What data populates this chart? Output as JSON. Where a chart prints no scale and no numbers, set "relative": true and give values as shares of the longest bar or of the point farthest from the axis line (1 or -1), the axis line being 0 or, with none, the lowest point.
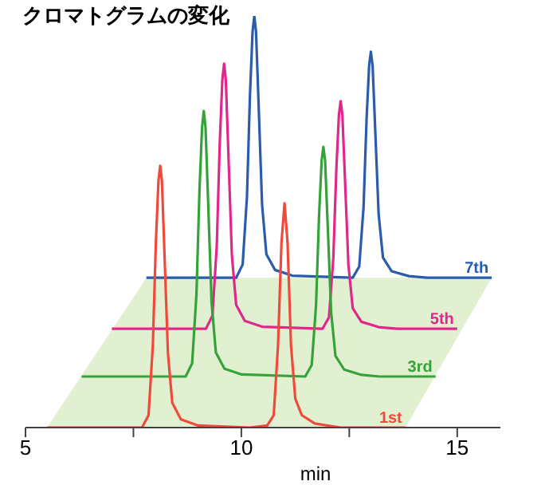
{
  "chart_data": {
    "type": "line",
    "title": "クロマトグラムの変化",
    "xlabel": "min",
    "relative": true,
    "xlim": [
      5,
      16
    ],
    "xticks": [
      5,
      {
        "value": 7.5,
        "label": null
      },
      10,
      {
        "value": 12.5,
        "label": null
      },
      15
    ],
    "grid": false,
    "legend": false,
    "tick_labels": "x",
    "marker": "none",
    "line_style": "solid",
    "series": [
      {
        "name": "1st",
        "color": "#f04a3a",
        "x": [
          5.5,
          7.7,
          7.85,
          7.95,
          8.02,
          8.08,
          8.12,
          8.16,
          8.22,
          8.3,
          8.4,
          8.6,
          9.0,
          10.2,
          10.6,
          10.75,
          10.85,
          10.93,
          11.0,
          11.07,
          11.15,
          11.25,
          11.4,
          11.7,
          12.3,
          13.8
        ],
        "values": [
          0,
          0,
          0.03,
          0.2,
          0.45,
          0.6,
          0.636,
          0.6,
          0.42,
          0.18,
          0.06,
          0.02,
          0.005,
          0,
          0.005,
          0.03,
          0.2,
          0.45,
          0.545,
          0.45,
          0.2,
          0.07,
          0.03,
          0.01,
          0,
          0
        ]
      },
      {
        "name": "3rd",
        "color": "#36a33a",
        "x": [
          6.3,
          8.71,
          8.86,
          8.96,
          9.03,
          9.09,
          9.13,
          9.17,
          9.23,
          9.31,
          9.41,
          9.61,
          10.01,
          11.48,
          11.63,
          11.73,
          11.8,
          11.86,
          11.9,
          11.94,
          12.0,
          12.08,
          12.18,
          12.38,
          12.78,
          13.2,
          14.5
        ],
        "values": [
          0.124,
          0.124,
          0.156,
          0.324,
          0.576,
          0.73,
          0.769,
          0.73,
          0.55,
          0.305,
          0.182,
          0.143,
          0.129,
          0.124,
          0.152,
          0.297,
          0.515,
          0.649,
          0.682,
          0.649,
          0.492,
          0.28,
          0.174,
          0.141,
          0.128,
          0.124,
          0.124
        ]
      },
      {
        "name": "5th",
        "color": "#e0288c",
        "x": [
          7.0,
          9.18,
          9.33,
          9.43,
          9.5,
          9.56,
          9.6,
          9.64,
          9.7,
          9.78,
          9.88,
          10.08,
          10.48,
          11.88,
          12.03,
          12.13,
          12.2,
          12.26,
          12.3,
          12.34,
          12.4,
          12.48,
          12.58,
          12.78,
          13.18,
          13.6,
          15.0
        ],
        "values": [
          0.24,
          0.24,
          0.272,
          0.44,
          0.691,
          0.845,
          0.884,
          0.845,
          0.665,
          0.42,
          0.298,
          0.259,
          0.245,
          0.24,
          0.268,
          0.411,
          0.627,
          0.76,
          0.793,
          0.76,
          0.605,
          0.395,
          0.29,
          0.257,
          0.244,
          0.24,
          0.24
        ]
      },
      {
        "name": "7th",
        "color": "#2a5caa",
        "x": [
          7.8,
          9.88,
          10.03,
          10.13,
          10.2,
          10.26,
          10.3,
          10.34,
          10.4,
          10.48,
          10.58,
          10.78,
          11.18,
          12.58,
          12.73,
          12.83,
          12.9,
          12.96,
          13.0,
          13.04,
          13.1,
          13.18,
          13.28,
          13.48,
          13.88,
          14.3,
          15.8
        ],
        "values": [
          0.364,
          0.364,
          0.396,
          0.561,
          0.809,
          0.962,
          1,
          0.962,
          0.784,
          0.542,
          0.421,
          0.383,
          0.369,
          0.364,
          0.391,
          0.534,
          0.748,
          0.88,
          0.913,
          0.88,
          0.726,
          0.518,
          0.413,
          0.38,
          0.368,
          0.364,
          0.364
        ]
      }
    ]
  }
}
